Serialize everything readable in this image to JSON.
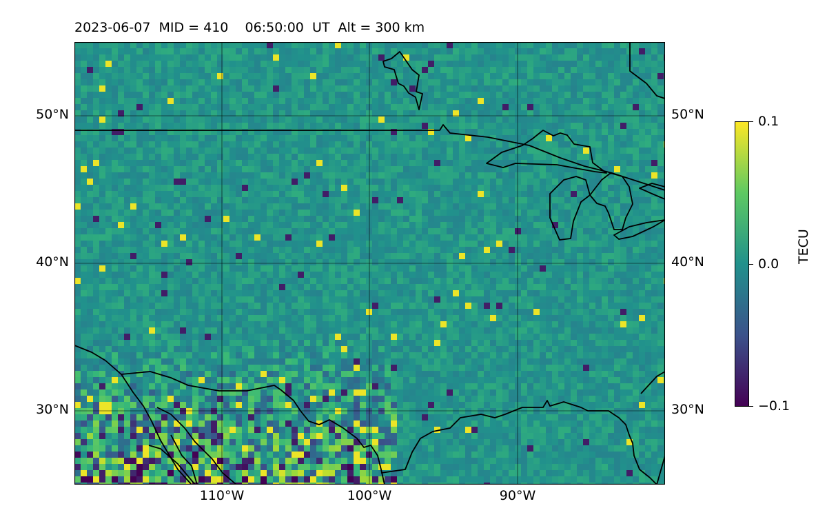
{
  "header": {
    "title": "2023-06-07  MID = 410    06:50:00  UT  Alt = 300 km"
  },
  "map": {
    "type": "tec-perturbation-map",
    "lat_range": [
      25,
      55
    ],
    "lon_range": [
      -120,
      -80
    ],
    "lat_ticks": [
      {
        "value": 50,
        "label": "50°N"
      },
      {
        "value": 40,
        "label": "40°N"
      },
      {
        "value": 30,
        "label": "30°N"
      }
    ],
    "lon_ticks": [
      {
        "value": -110,
        "label": "110°W"
      },
      {
        "value": -100,
        "label": "100°W"
      },
      {
        "value": -90,
        "label": "90°W"
      }
    ],
    "grid": true,
    "colormap": "viridis",
    "background_color": "#2a8a86",
    "features": [
      "us-canada-border",
      "us-mexico-border",
      "gulf-coast",
      "great-lakes",
      "pacific-coast",
      "hudson-bay-coast"
    ]
  },
  "colorbar": {
    "label": "TECU",
    "min": -0.1,
    "max": 0.1,
    "ticks": [
      {
        "value": 0.1,
        "label": "0.1"
      },
      {
        "value": 0.0,
        "label": "0.0"
      },
      {
        "value": -0.1,
        "label": "−0.1"
      }
    ],
    "colors": [
      "#440154",
      "#3b528b",
      "#21918c",
      "#5ec962",
      "#fde725"
    ]
  }
}
